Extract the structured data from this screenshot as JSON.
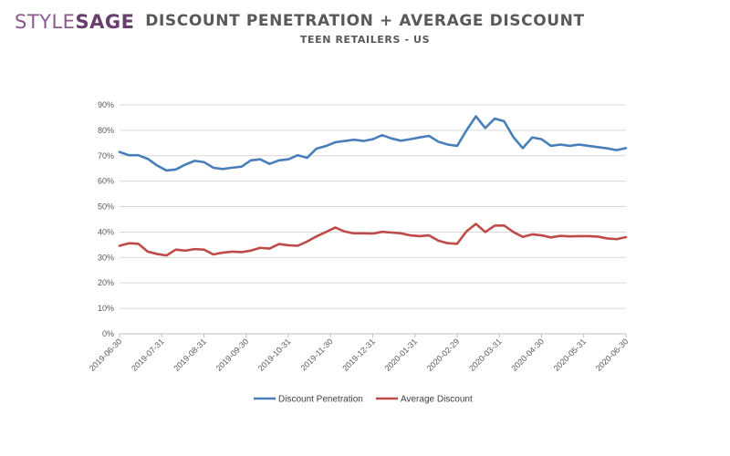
{
  "logo": {
    "part1": "STYLE",
    "part2": "SAGE"
  },
  "chart_data": {
    "type": "line",
    "title": "DISCOUNT PENETRATION + AVERAGE DISCOUNT",
    "subtitle": "TEEN RETAILERS - US",
    "xlabel": "",
    "ylabel": "",
    "ylim": [
      0,
      90
    ],
    "yticks": [
      "0%",
      "10%",
      "20%",
      "30%",
      "40%",
      "50%",
      "60%",
      "70%",
      "80%",
      "90%"
    ],
    "xticks": [
      "2019-06-30",
      "2019-07-31",
      "2019-08-31",
      "2019-09-30",
      "2019-10-31",
      "2019-11-30",
      "2019-12-31",
      "2020-01-31",
      "2020-02-29",
      "2020-03-31",
      "2020-04-30",
      "2020-05-31",
      "2020-06-30"
    ],
    "grid": true,
    "legend_position": "bottom",
    "series": [
      {
        "name": "Discount Penetration",
        "color": "#4a7ebb",
        "values": [
          71.5,
          70.2,
          70.2,
          68.8,
          66.2,
          64.2,
          64.6,
          66.5,
          68.0,
          67.5,
          65.3,
          64.8,
          65.3,
          65.7,
          68.2,
          68.6,
          66.8,
          68.2,
          68.6,
          70.2,
          69.2,
          72.8,
          73.8,
          75.3,
          75.8,
          76.3,
          75.8,
          76.5,
          78.1,
          76.8,
          75.9,
          76.5,
          77.2,
          77.8,
          75.5,
          74.4,
          73.9,
          80.0,
          85.5,
          80.9,
          84.6,
          83.6,
          77.3,
          73.0,
          77.2,
          76.5,
          73.9,
          74.4,
          73.9,
          74.4,
          73.9,
          73.4,
          72.9,
          72.2,
          73.0
        ]
      },
      {
        "name": "Average Discount",
        "color": "#be4b48",
        "values": [
          34.6,
          35.6,
          35.4,
          32.3,
          31.4,
          30.8,
          33.1,
          32.7,
          33.3,
          33.1,
          31.2,
          31.9,
          32.3,
          32.1,
          32.7,
          33.8,
          33.5,
          35.3,
          34.8,
          34.6,
          36.3,
          38.3,
          40.0,
          41.8,
          40.2,
          39.5,
          39.5,
          39.4,
          40.1,
          39.8,
          39.5,
          38.7,
          38.4,
          38.7,
          36.6,
          35.6,
          35.4,
          40.3,
          43.2,
          40.0,
          42.5,
          42.6,
          40.0,
          38.1,
          39.1,
          38.7,
          37.9,
          38.5,
          38.3,
          38.4,
          38.4,
          38.2,
          37.5,
          37.2,
          38.0
        ]
      }
    ]
  }
}
